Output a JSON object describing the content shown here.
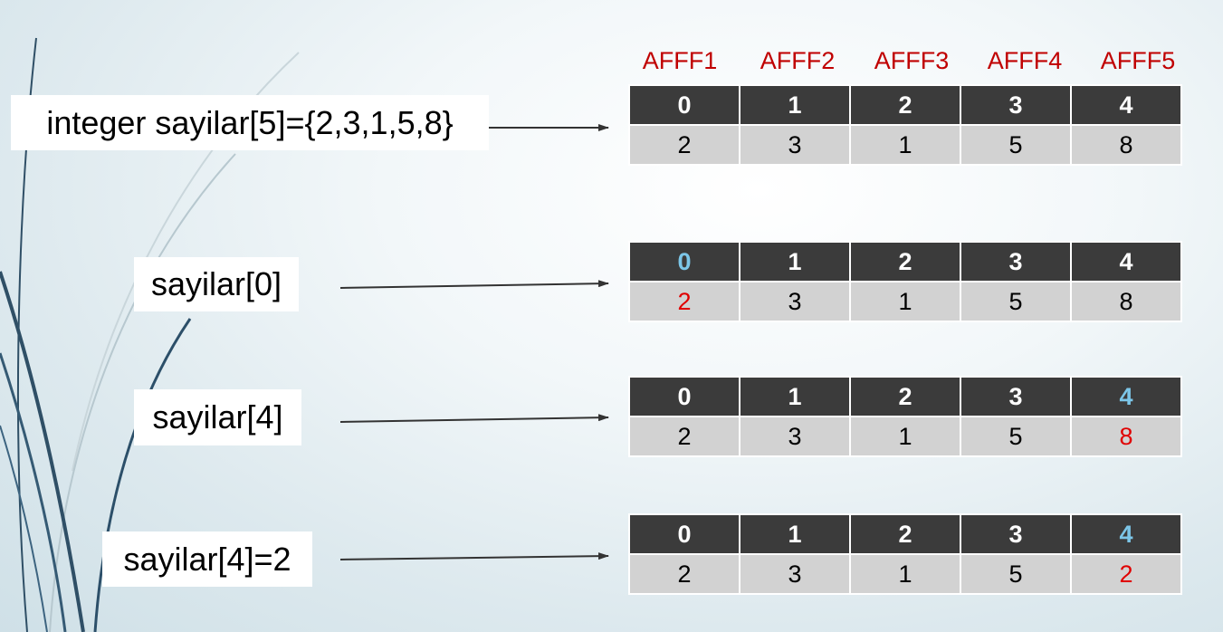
{
  "addresses": [
    "AFFF1",
    "AFFF2",
    "AFFF3",
    "AFFF4",
    "AFFF5"
  ],
  "rows": [
    {
      "label": "integer sayilar[5]={2,3,1,5,8}",
      "indices": [
        "0",
        "1",
        "2",
        "3",
        "4"
      ],
      "values": [
        "2",
        "3",
        "1",
        "5",
        "8"
      ]
    },
    {
      "label": "sayilar[0]",
      "indices": [
        "0",
        "1",
        "2",
        "3",
        "4"
      ],
      "values": [
        "2",
        "3",
        "1",
        "5",
        "8"
      ],
      "highlight_index": 0
    },
    {
      "label": "sayilar[4]",
      "indices": [
        "0",
        "1",
        "2",
        "3",
        "4"
      ],
      "values": [
        "2",
        "3",
        "1",
        "5",
        "8"
      ],
      "highlight_index": 4
    },
    {
      "label": "sayilar[4]=2",
      "indices": [
        "0",
        "1",
        "2",
        "3",
        "4"
      ],
      "values": [
        "2",
        "3",
        "1",
        "5",
        "2"
      ],
      "highlight_index": 4
    }
  ],
  "colors": {
    "address_text": "#c00000",
    "index_cell_bg": "#3b3b3b",
    "value_cell_bg": "#d2d2d2",
    "highlight_index_text": "#7cc6e8",
    "highlight_value_text": "#e00000",
    "arrow": "#333333"
  }
}
